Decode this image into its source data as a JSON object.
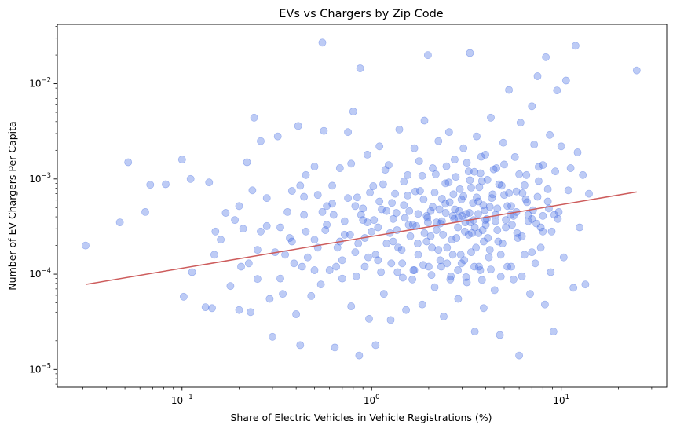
{
  "chart_data": {
    "type": "scatter",
    "title": "EVs vs Chargers by Zip Code",
    "xlabel": "Share of Electric Vehicles in Vehicle Registrations (%)",
    "ylabel": "Number of EV Chargers Per Capita",
    "xscale": "log",
    "yscale": "log",
    "xlim": [
      0.022,
      36
    ],
    "ylim": [
      6.5e-06,
      0.042
    ],
    "grid": false,
    "legend": "none",
    "colors": {
      "points": "#4169e1",
      "points_opacity": 0.35,
      "trend_line": "#cd5c5c"
    },
    "x_ticks": [
      {
        "value": 0.1,
        "base": "10",
        "exp": "−1"
      },
      {
        "value": 1,
        "base": "10",
        "exp": "0"
      },
      {
        "value": 10,
        "base": "10",
        "exp": "1"
      }
    ],
    "y_ticks": [
      {
        "value": 1e-05,
        "base": "10",
        "exp": "−5"
      },
      {
        "value": 0.0001,
        "base": "10",
        "exp": "−4"
      },
      {
        "value": 0.001,
        "base": "10",
        "exp": "−3"
      },
      {
        "value": 0.01,
        "base": "10",
        "exp": "−2"
      }
    ],
    "trend_line": {
      "x": [
        0.031,
        25
      ],
      "y": [
        7.8e-05,
        0.00073
      ]
    },
    "points": [
      [
        0.031,
        0.0002
      ],
      [
        0.047,
        0.00035
      ],
      [
        0.052,
        0.0015
      ],
      [
        0.064,
        0.00045
      ],
      [
        0.068,
        0.00087
      ],
      [
        0.082,
        0.00088
      ],
      [
        0.1,
        0.0016
      ],
      [
        0.102,
        5.8e-05
      ],
      [
        0.111,
        0.001
      ],
      [
        0.113,
        0.000105
      ],
      [
        0.133,
        4.5e-05
      ],
      [
        0.139,
        0.00092
      ],
      [
        0.144,
        4.4e-05
      ],
      [
        0.148,
        0.00016
      ],
      [
        0.15,
        0.00028
      ],
      [
        0.16,
        0.00023
      ],
      [
        0.17,
        0.00044
      ],
      [
        0.18,
        7.5e-05
      ],
      [
        0.19,
        0.00037
      ],
      [
        0.2,
        0.00052
      ],
      [
        0.205,
        0.00012
      ],
      [
        0.2,
        4.2e-05
      ],
      [
        0.21,
        0.0003
      ],
      [
        0.22,
        0.0015
      ],
      [
        0.225,
        0.00013
      ],
      [
        0.23,
        4e-05
      ],
      [
        0.235,
        0.00076
      ],
      [
        0.24,
        0.0044
      ],
      [
        0.25,
        8.9e-05
      ],
      [
        0.26,
        0.00028
      ],
      [
        0.26,
        0.0025
      ],
      [
        0.28,
        0.00063
      ],
      [
        0.29,
        5.5e-05
      ],
      [
        0.3,
        2.2e-05
      ],
      [
        0.31,
        0.00017
      ],
      [
        0.32,
        0.0028
      ],
      [
        0.33,
        0.00031
      ],
      [
        0.34,
        6.2e-05
      ],
      [
        0.35,
        0.00016
      ],
      [
        0.37,
        0.00024
      ],
      [
        0.38,
        0.00075
      ],
      [
        0.39,
        0.00013
      ],
      [
        0.4,
        3.8e-05
      ],
      [
        0.41,
        0.0036
      ],
      [
        0.42,
        1.8e-05
      ],
      [
        0.43,
        0.00012
      ],
      [
        0.44,
        0.00042
      ],
      [
        0.45,
        0.0011
      ],
      [
        0.46,
        0.00015
      ],
      [
        0.48,
        5.9e-05
      ],
      [
        0.5,
        0.00023
      ],
      [
        0.52,
        0.00068
      ],
      [
        0.54,
        7.8e-05
      ],
      [
        0.55,
        0.027
      ],
      [
        0.56,
        0.0032
      ],
      [
        0.58,
        0.00033
      ],
      [
        0.6,
        0.00011
      ],
      [
        0.62,
        0.00055
      ],
      [
        0.64,
        1.7e-05
      ],
      [
        0.66,
        0.00019
      ],
      [
        0.68,
        0.0013
      ],
      [
        0.7,
        9e-05
      ],
      [
        0.72,
        0.00026
      ],
      [
        0.75,
        0.0031
      ],
      [
        0.78,
        4.6e-05
      ],
      [
        0.8,
        0.0051
      ],
      [
        0.82,
        0.00017
      ],
      [
        0.84,
        0.00064
      ],
      [
        0.86,
        1.4e-05
      ],
      [
        0.87,
        0.0145
      ],
      [
        0.9,
        0.00037
      ],
      [
        0.92,
        0.00012
      ],
      [
        0.95,
        0.0018
      ],
      [
        0.97,
        3.4e-05
      ],
      [
        1.0,
        0.00028
      ],
      [
        1.02,
        0.00084
      ],
      [
        1.05,
        1.8e-05
      ],
      [
        1.08,
        0.00014
      ],
      [
        1.1,
        0.0022
      ],
      [
        1.13,
        0.00048
      ],
      [
        1.16,
        6.2e-05
      ],
      [
        1.2,
        0.00021
      ],
      [
        1.23,
        0.0014
      ],
      [
        1.26,
        3.3e-05
      ],
      [
        1.3,
        0.00038
      ],
      [
        1.33,
        0.0007
      ],
      [
        1.37,
        0.000105
      ],
      [
        1.4,
        0.0033
      ],
      [
        1.44,
        0.00018
      ],
      [
        1.48,
        0.00053
      ],
      [
        1.52,
        4.2e-05
      ],
      [
        1.55,
        0.0011
      ],
      [
        1.6,
        0.00025
      ],
      [
        1.64,
        8.8e-05
      ],
      [
        1.68,
        0.0021
      ],
      [
        1.72,
        0.00032
      ],
      [
        1.76,
        0.00016
      ],
      [
        1.8,
        0.00075
      ],
      [
        1.85,
        4.8e-05
      ],
      [
        1.9,
        0.0041
      ],
      [
        1.95,
        0.00022
      ],
      [
        1.98,
        0.02
      ],
      [
        2.0,
        0.00012
      ],
      [
        2.05,
        0.00046
      ],
      [
        2.1,
        0.0013
      ],
      [
        2.15,
        7.3e-05
      ],
      [
        2.2,
        0.00029
      ],
      [
        2.25,
        0.0025
      ],
      [
        2.3,
        0.00014
      ],
      [
        2.35,
        0.00062
      ],
      [
        2.4,
        3.6e-05
      ],
      [
        2.45,
        0.0009
      ],
      [
        2.5,
        0.00019
      ],
      [
        2.56,
        0.0031
      ],
      [
        2.62,
        9.5e-05
      ],
      [
        2.68,
        0.00041
      ],
      [
        2.74,
        0.0016
      ],
      [
        2.8,
        0.00024
      ],
      [
        2.86,
        5.5e-05
      ],
      [
        2.92,
        0.00078
      ],
      [
        2.98,
        0.00013
      ],
      [
        3.05,
        0.0021
      ],
      [
        3.12,
        0.00035
      ],
      [
        3.18,
        8.2e-05
      ],
      [
        3.25,
        0.0012
      ],
      [
        3.3,
        0.021
      ],
      [
        3.35,
        0.00017
      ],
      [
        3.42,
        0.00056
      ],
      [
        3.5,
        2.5e-05
      ],
      [
        3.58,
        0.0028
      ],
      [
        3.66,
        0.00027
      ],
      [
        3.74,
        0.00011
      ],
      [
        3.82,
        0.00095
      ],
      [
        3.9,
        4.4e-05
      ],
      [
        3.98,
        0.0018
      ],
      [
        4.05,
        0.00038
      ],
      [
        4.15,
        0.00015
      ],
      [
        4.25,
        0.0044
      ],
      [
        4.35,
        0.00069
      ],
      [
        4.45,
        6.8e-05
      ],
      [
        4.55,
        0.0013
      ],
      [
        4.65,
        0.00022
      ],
      [
        4.75,
        2.3e-05
      ],
      [
        4.85,
        0.00085
      ],
      [
        4.95,
        0.0024
      ],
      [
        5.1,
        0.00031
      ],
      [
        5.2,
        0.00012
      ],
      [
        5.3,
        0.0086
      ],
      [
        5.45,
        0.00052
      ],
      [
        5.6,
        8.8e-05
      ],
      [
        5.7,
        0.0017
      ],
      [
        5.85,
        0.00027
      ],
      [
        6.0,
        1.4e-05
      ],
      [
        6.1,
        0.0039
      ],
      [
        6.25,
        0.00071
      ],
      [
        6.4,
        0.00016
      ],
      [
        6.55,
        0.0011
      ],
      [
        6.7,
        0.00042
      ],
      [
        6.85,
        6.2e-05
      ],
      [
        7.0,
        0.0058
      ],
      [
        7.2,
        0.0023
      ],
      [
        7.4,
        0.00034
      ],
      [
        7.5,
        0.012
      ],
      [
        7.6,
        0.00095
      ],
      [
        7.8,
        0.00019
      ],
      [
        8.0,
        0.0014
      ],
      [
        8.2,
        4.8e-05
      ],
      [
        8.3,
        0.019
      ],
      [
        8.5,
        0.00058
      ],
      [
        8.7,
        0.0029
      ],
      [
        8.9,
        0.00028
      ],
      [
        9.1,
        2.5e-05
      ],
      [
        9.3,
        0.0012
      ],
      [
        9.5,
        0.0085
      ],
      [
        9.7,
        0.00045
      ],
      [
        10.0,
        0.0022
      ],
      [
        10.3,
        0.00015
      ],
      [
        10.6,
        0.0108
      ],
      [
        10.9,
        0.00076
      ],
      [
        11.2,
        0.0013
      ],
      [
        11.6,
        7.2e-05
      ],
      [
        11.9,
        0.025
      ],
      [
        12.2,
        0.0019
      ],
      [
        12.5,
        0.00031
      ],
      [
        13.0,
        0.0011
      ],
      [
        13.4,
        7.8e-05
      ],
      [
        14.0,
        0.0007
      ],
      [
        25.0,
        0.0138
      ],
      [
        0.45,
        0.00028
      ],
      [
        0.55,
        0.00045
      ],
      [
        0.65,
        0.00012
      ],
      [
        0.75,
        0.00063
      ],
      [
        0.85,
        0.00021
      ],
      [
        0.95,
        0.00035
      ],
      [
        1.05,
        0.00016
      ],
      [
        1.15,
        0.00088
      ],
      [
        1.25,
        0.00027
      ],
      [
        1.35,
        0.00044
      ],
      [
        1.45,
        0.00013
      ],
      [
        1.55,
        0.00067
      ],
      [
        1.65,
        0.00033
      ],
      [
        1.75,
        0.00021
      ],
      [
        1.85,
        0.00108
      ],
      [
        1.95,
        0.00041
      ],
      [
        2.05,
        0.00025
      ],
      [
        2.15,
        0.00072
      ],
      [
        2.25,
        0.00018
      ],
      [
        2.35,
        0.00036
      ],
      [
        2.45,
        0.00055
      ],
      [
        2.55,
        0.00092
      ],
      [
        2.65,
        0.00023
      ],
      [
        2.75,
        0.00048
      ],
      [
        2.85,
        0.00031
      ],
      [
        2.95,
        0.00016
      ],
      [
        3.05,
        0.00066
      ],
      [
        3.15,
        0.00043
      ],
      [
        3.25,
        0.00026
      ],
      [
        3.35,
        0.00081
      ],
      [
        3.45,
        0.00037
      ],
      [
        3.55,
        0.00019
      ],
      [
        3.65,
        0.00058
      ],
      [
        3.75,
        0.00115
      ],
      [
        3.85,
        0.00029
      ],
      [
        3.95,
        0.00047
      ],
      [
        4.1,
        0.00024
      ],
      [
        4.3,
        0.00063
      ],
      [
        4.5,
        0.00036
      ],
      [
        4.7,
        0.00088
      ],
      [
        4.9,
        0.00021
      ],
      [
        5.2,
        0.00052
      ],
      [
        5.5,
        0.00033
      ],
      [
        5.8,
        0.00074
      ],
      [
        6.2,
        0.00025
      ],
      [
        6.6,
        0.00057
      ],
      [
        7.0,
        0.00038
      ],
      [
        7.5,
        0.00065
      ],
      [
        8.0,
        0.00028
      ],
      [
        8.6,
        0.00049
      ],
      [
        0.52,
        0.00019
      ],
      [
        0.62,
        0.00085
      ],
      [
        0.72,
        0.00036
      ],
      [
        0.82,
        0.00052
      ],
      [
        0.92,
        0.00024
      ],
      [
        1.1,
        0.00058
      ],
      [
        1.3,
        0.00022
      ],
      [
        1.5,
        0.00039
      ],
      [
        1.7,
        0.00074
      ],
      [
        1.9,
        0.00027
      ],
      [
        2.1,
        0.00051
      ],
      [
        2.3,
        0.00034
      ],
      [
        2.5,
        0.00013
      ],
      [
        2.7,
        0.00069
      ],
      [
        2.9,
        0.00046
      ],
      [
        3.1,
        0.00028
      ],
      [
        3.3,
        0.00097
      ],
      [
        3.5,
        0.00031
      ],
      [
        3.7,
        0.00082
      ],
      [
        3.9,
        0.00022
      ],
      [
        4.2,
        0.00051
      ],
      [
        4.6,
        0.00029
      ],
      [
        5.0,
        0.00068
      ],
      [
        5.4,
        0.00042
      ],
      [
        5.9,
        0.00024
      ],
      [
        6.4,
        0.00086
      ],
      [
        7.1,
        0.00047
      ],
      [
        7.8,
        0.00031
      ],
      [
        8.5,
        0.00078
      ],
      [
        9.2,
        0.00042
      ],
      [
        0.36,
        0.00045
      ],
      [
        0.42,
        0.00085
      ],
      [
        0.5,
        0.00135
      ],
      [
        0.58,
        0.00052
      ],
      [
        0.68,
        0.00022
      ],
      [
        0.78,
        0.00145
      ],
      [
        0.88,
        0.00042
      ],
      [
        0.98,
        0.00072
      ],
      [
        1.08,
        0.00031
      ],
      [
        1.18,
        0.00125
      ],
      [
        1.28,
        0.00056
      ],
      [
        1.38,
        0.00019
      ],
      [
        1.48,
        0.00094
      ],
      [
        1.58,
        0.00046
      ],
      [
        1.68,
        0.00011
      ],
      [
        1.78,
        0.00154
      ],
      [
        1.88,
        0.00061
      ],
      [
        1.98,
        0.00035
      ],
      [
        2.08,
        0.00019
      ],
      [
        2.18,
        0.00112
      ],
      [
        2.28,
        0.00048
      ],
      [
        2.38,
        0.00026
      ],
      [
        2.48,
        0.00136
      ],
      [
        2.58,
        0.00057
      ],
      [
        2.68,
        0.00016
      ],
      [
        2.78,
        0.00105
      ],
      [
        2.88,
        0.00039
      ],
      [
        2.98,
        0.00061
      ],
      [
        3.08,
        0.00014
      ],
      [
        3.18,
        0.00148
      ],
      [
        3.28,
        0.00044
      ],
      [
        3.38,
        0.00027
      ],
      [
        3.48,
        0.00119
      ],
      [
        3.58,
        0.00064
      ],
      [
        3.68,
        0.00012
      ],
      [
        3.78,
        0.00171
      ],
      [
        3.88,
        0.00053
      ],
      [
        3.98,
        0.00037
      ],
      [
        4.08,
        0.00098
      ],
      [
        4.2,
        0.00018
      ],
      [
        4.4,
        0.00126
      ],
      [
        4.6,
        0.00049
      ],
      [
        4.8,
        0.00016
      ],
      [
        5.0,
        0.00142
      ],
      [
        5.3,
        0.00071
      ],
      [
        5.6,
        0.00041
      ],
      [
        6.0,
        0.00112
      ],
      [
        6.5,
        0.00061
      ],
      [
        7.0,
        0.00017
      ],
      [
        7.6,
        0.00134
      ],
      [
        0.25,
        0.00018
      ],
      [
        0.28,
        0.00032
      ],
      [
        0.33,
        9e-05
      ],
      [
        0.38,
        0.00022
      ],
      [
        0.44,
        0.00065
      ],
      [
        0.5,
        0.00011
      ],
      [
        0.57,
        0.00029
      ],
      [
        0.63,
        0.00042
      ],
      [
        0.7,
        0.00014
      ],
      [
        0.77,
        0.00026
      ],
      [
        0.83,
        9.5e-05
      ],
      [
        0.9,
        0.00049
      ],
      [
        0.96,
        0.00015
      ],
      [
        1.03,
        0.00037
      ],
      [
        1.12,
        0.000105
      ],
      [
        1.2,
        0.00046
      ],
      [
        1.27,
        0.00013
      ],
      [
        1.36,
        0.00029
      ],
      [
        1.46,
        9.2e-05
      ],
      [
        1.57,
        0.00033
      ],
      [
        1.66,
        0.00011
      ],
      [
        1.76,
        0.00043
      ],
      [
        1.87,
        0.000125
      ],
      [
        1.97,
        0.00039
      ],
      [
        2.07,
        9.8e-05
      ],
      [
        2.2,
        0.00035
      ],
      [
        2.33,
        0.00012
      ],
      [
        2.46,
        0.00044
      ],
      [
        2.6,
        8.8e-05
      ],
      [
        2.72,
        0.00038
      ],
      [
        2.85,
        0.00011
      ],
      [
        3.0,
        0.00041
      ],
      [
        3.15,
        9.3e-05
      ],
      [
        3.32,
        0.00035
      ],
      [
        3.48,
        0.00012
      ],
      [
        3.65,
        0.00043
      ],
      [
        3.82,
        8.7e-05
      ],
      [
        4.0,
        0.00033
      ],
      [
        4.25,
        0.000112
      ],
      [
        4.5,
        0.00042
      ],
      [
        4.8,
        9.4e-05
      ],
      [
        5.1,
        0.00037
      ],
      [
        5.45,
        0.00012
      ],
      [
        5.8,
        0.00045
      ],
      [
        6.2,
        9.5e-05
      ],
      [
        6.7,
        0.00036
      ],
      [
        7.3,
        0.00013
      ],
      [
        8.0,
        0.00041
      ],
      [
        8.8,
        0.000105
      ],
      [
        9.6,
        0.00038
      ]
    ]
  }
}
